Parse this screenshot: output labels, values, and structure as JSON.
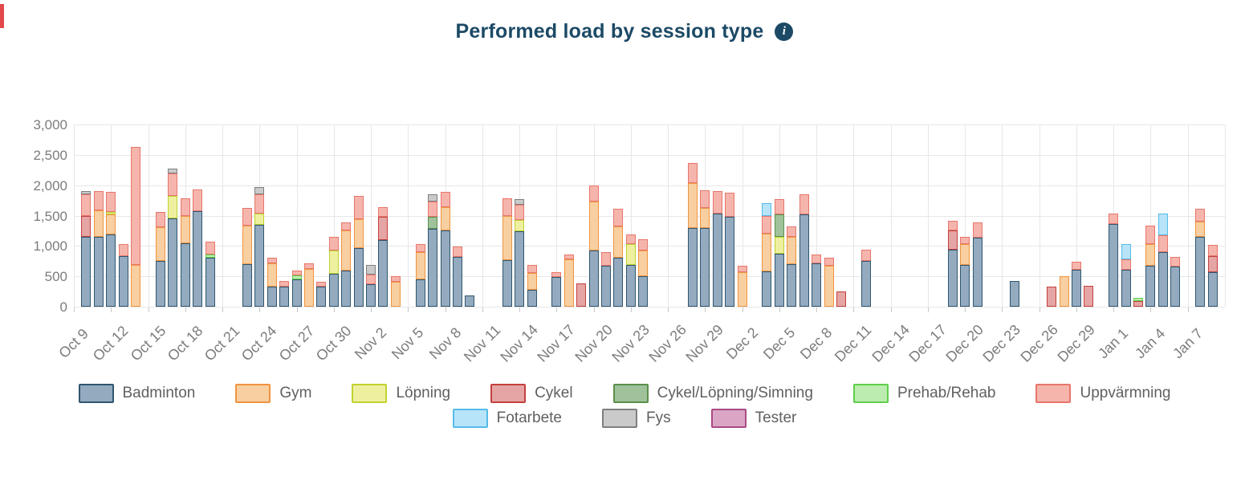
{
  "header": {
    "title": "Performed load by session type"
  },
  "chart_data": {
    "type": "bar",
    "stacked": true,
    "title": "Performed load by session type",
    "xlabel": "",
    "ylabel": "",
    "ylim": [
      0,
      3000
    ],
    "grid": true,
    "legend_position": "bottom",
    "yticks": [
      {
        "value": 0,
        "label": "0"
      },
      {
        "value": 500,
        "label": "500"
      },
      {
        "value": 1000,
        "label": "1,000"
      },
      {
        "value": 1500,
        "label": "1,500"
      },
      {
        "value": 2000,
        "label": "2,000"
      },
      {
        "value": 2500,
        "label": "2,500"
      },
      {
        "value": 3000,
        "label": "3,000"
      }
    ],
    "days_total": 93,
    "x_tick_day_step": 3,
    "x_tick_labels": [
      "Oct 9",
      "Oct 12",
      "Oct 15",
      "Oct 18",
      "Oct 21",
      "Oct 24",
      "Oct 27",
      "Oct 30",
      "Nov 2",
      "Nov 5",
      "Nov 8",
      "Nov 11",
      "Nov 14",
      "Nov 17",
      "Nov 20",
      "Nov 23",
      "Nov 26",
      "Nov 29",
      "Dec 2",
      "Dec 5",
      "Dec 8",
      "Dec 11",
      "Dec 14",
      "Dec 17",
      "Dec 20",
      "Dec 23",
      "Dec 26",
      "Dec 29",
      "Jan 1",
      "Jan 4",
      "Jan 7"
    ],
    "series": [
      {
        "key": "badminton",
        "name": "Badminton",
        "fill": "#93aabf",
        "border": "#30566f"
      },
      {
        "key": "gym",
        "name": "Gym",
        "fill": "#f8cfa0",
        "border": "#f09440"
      },
      {
        "key": "lopning",
        "name": "Löpning",
        "fill": "#eef0a0",
        "border": "#bfd22f"
      },
      {
        "key": "cykel",
        "name": "Cykel",
        "fill": "#e4a5a4",
        "border": "#c4403e"
      },
      {
        "key": "cls",
        "name": "Cykel/Löpning/Simning",
        "fill": "#9fc29a",
        "border": "#5a8f4c"
      },
      {
        "key": "prehab",
        "name": "Prehab/Rehab",
        "fill": "#bcecb0",
        "border": "#5ecf49"
      },
      {
        "key": "uppvarmning",
        "name": "Uppvärmning",
        "fill": "#f5b5ac",
        "border": "#e7766c"
      },
      {
        "key": "fotarbete",
        "name": "Fotarbete",
        "fill": "#b7e4f8",
        "border": "#55bbea"
      },
      {
        "key": "fys",
        "name": "Fys",
        "fill": "#cacaca",
        "border": "#7f7f7f"
      },
      {
        "key": "tester",
        "name": "Tester",
        "fill": "#dba6c5",
        "border": "#a94b85"
      }
    ],
    "legend_rows": [
      [
        "badminton",
        "gym",
        "lopning",
        "cykel",
        "cls",
        "prehab",
        "uppvarmning"
      ],
      [
        "fotarbete",
        "fys",
        "tester"
      ]
    ],
    "days": [
      {
        "i": 1,
        "label": "Oct 10",
        "v": {
          "badminton": 1150,
          "cykel": 340,
          "uppvarmning": 355,
          "fys": 65
        }
      },
      {
        "i": 2,
        "label": "Oct 11",
        "v": {
          "badminton": 1150,
          "gym": 435,
          "uppvarmning": 315
        }
      },
      {
        "i": 3,
        "label": "Oct 12",
        "v": {
          "badminton": 1190,
          "gym": 330,
          "lopning": 45,
          "uppvarmning": 320
        }
      },
      {
        "i": 4,
        "label": "Oct 13",
        "v": {
          "badminton": 830,
          "uppvarmning": 200
        }
      },
      {
        "i": 5,
        "label": "Oct 14",
        "v": {
          "gym": 690,
          "uppvarmning": 1940
        }
      },
      {
        "i": 7,
        "label": "Oct 16",
        "v": {
          "badminton": 750,
          "gym": 560,
          "uppvarmning": 245
        }
      },
      {
        "i": 8,
        "label": "Oct 17",
        "v": {
          "badminton": 1460,
          "lopning": 365,
          "uppvarmning": 365,
          "fys": 90
        }
      },
      {
        "i": 9,
        "label": "Oct 18",
        "v": {
          "badminton": 1050,
          "gym": 440,
          "uppvarmning": 300
        }
      },
      {
        "i": 10,
        "label": "Oct 19",
        "v": {
          "badminton": 1575,
          "uppvarmning": 360
        }
      },
      {
        "i": 11,
        "label": "Oct 20",
        "v": {
          "badminton": 810,
          "prehab": 55,
          "uppvarmning": 200
        }
      },
      {
        "i": 14,
        "label": "Oct 23",
        "v": {
          "badminton": 700,
          "gym": 630,
          "uppvarmning": 300
        }
      },
      {
        "i": 15,
        "label": "Oct 24",
        "v": {
          "badminton": 1345,
          "lopning": 190,
          "uppvarmning": 320,
          "fys": 110
        }
      },
      {
        "i": 16,
        "label": "Oct 25",
        "v": {
          "badminton": 325,
          "gym": 395,
          "uppvarmning": 80
        }
      },
      {
        "i": 17,
        "label": "Oct 26",
        "v": {
          "badminton": 335,
          "uppvarmning": 90
        }
      },
      {
        "i": 18,
        "label": "Oct 27",
        "v": {
          "badminton": 455,
          "prehab": 65,
          "uppvarmning": 80
        }
      },
      {
        "i": 19,
        "label": "Oct 28",
        "v": {
          "gym": 620,
          "uppvarmning": 100
        }
      },
      {
        "i": 20,
        "label": "Oct 29",
        "v": {
          "badminton": 325,
          "uppvarmning": 85
        }
      },
      {
        "i": 21,
        "label": "Oct 30",
        "v": {
          "badminton": 545,
          "lopning": 375,
          "uppvarmning": 225
        }
      },
      {
        "i": 22,
        "label": "Oct 31",
        "v": {
          "badminton": 600,
          "gym": 660,
          "uppvarmning": 130
        }
      },
      {
        "i": 23,
        "label": "Nov 1",
        "v": {
          "badminton": 965,
          "gym": 480,
          "uppvarmning": 385
        }
      },
      {
        "i": 24,
        "label": "Nov 2",
        "v": {
          "badminton": 365,
          "uppvarmning": 170,
          "fys": 155
        }
      },
      {
        "i": 25,
        "label": "Nov 3",
        "v": {
          "badminton": 1100,
          "cykel": 380,
          "uppvarmning": 165
        }
      },
      {
        "i": 26,
        "label": "Nov 4",
        "v": {
          "gym": 415,
          "uppvarmning": 85
        }
      },
      {
        "i": 28,
        "label": "Nov 6",
        "v": {
          "badminton": 445,
          "gym": 460,
          "uppvarmning": 125
        }
      },
      {
        "i": 29,
        "label": "Nov 7",
        "v": {
          "badminton": 1280,
          "cls": 195,
          "uppvarmning": 260,
          "fys": 110
        }
      },
      {
        "i": 30,
        "label": "Nov 8",
        "v": {
          "badminton": 1255,
          "gym": 390,
          "uppvarmning": 245
        }
      },
      {
        "i": 31,
        "label": "Nov 9",
        "v": {
          "badminton": 820,
          "uppvarmning": 165
        }
      },
      {
        "i": 32,
        "label": "Nov 10",
        "v": {
          "badminton": 180
        }
      },
      {
        "i": 35,
        "label": "Nov 13",
        "v": {
          "badminton": 765,
          "gym": 725,
          "uppvarmning": 300
        }
      },
      {
        "i": 36,
        "label": "Nov 14",
        "v": {
          "badminton": 1245,
          "lopning": 185,
          "uppvarmning": 245,
          "fys": 100
        }
      },
      {
        "i": 37,
        "label": "Nov 15",
        "v": {
          "badminton": 275,
          "gym": 280,
          "uppvarmning": 135
        }
      },
      {
        "i": 39,
        "label": "Nov 17",
        "v": {
          "badminton": 490,
          "uppvarmning": 80
        }
      },
      {
        "i": 40,
        "label": "Nov 18",
        "v": {
          "gym": 780,
          "uppvarmning": 75
        }
      },
      {
        "i": 41,
        "label": "Nov 19",
        "v": {
          "cykel": 390
        }
      },
      {
        "i": 42,
        "label": "Nov 20",
        "v": {
          "badminton": 920,
          "gym": 815,
          "uppvarmning": 255
        }
      },
      {
        "i": 43,
        "label": "Nov 21",
        "v": {
          "badminton": 675,
          "uppvarmning": 225
        }
      },
      {
        "i": 44,
        "label": "Nov 22",
        "v": {
          "badminton": 800,
          "gym": 525,
          "uppvarmning": 285
        }
      },
      {
        "i": 45,
        "label": "Nov 23",
        "v": {
          "badminton": 690,
          "lopning": 335,
          "uppvarmning": 170
        }
      },
      {
        "i": 46,
        "label": "Nov 24",
        "v": {
          "badminton": 500,
          "gym": 420,
          "uppvarmning": 190
        }
      },
      {
        "i": 50,
        "label": "Nov 28",
        "v": {
          "badminton": 1290,
          "gym": 745,
          "uppvarmning": 330
        }
      },
      {
        "i": 51,
        "label": "Nov 29",
        "v": {
          "badminton": 1290,
          "gym": 335,
          "uppvarmning": 290
        }
      },
      {
        "i": 52,
        "label": "Nov 30",
        "v": {
          "badminton": 1535,
          "uppvarmning": 365
        }
      },
      {
        "i": 53,
        "label": "Dec 1",
        "v": {
          "badminton": 1475,
          "uppvarmning": 405
        }
      },
      {
        "i": 54,
        "label": "Dec 2",
        "v": {
          "gym": 565,
          "uppvarmning": 110
        }
      },
      {
        "i": 56,
        "label": "Dec 4",
        "v": {
          "badminton": 585,
          "gym": 620,
          "uppvarmning": 290,
          "fotarbete": 205
        }
      },
      {
        "i": 57,
        "label": "Dec 5",
        "v": {
          "badminton": 875,
          "lopning": 280,
          "cls": 365,
          "uppvarmning": 250
        }
      },
      {
        "i": 58,
        "label": "Dec 6",
        "v": {
          "badminton": 700,
          "gym": 455,
          "uppvarmning": 170
        }
      },
      {
        "i": 59,
        "label": "Dec 7",
        "v": {
          "badminton": 1520,
          "uppvarmning": 335
        }
      },
      {
        "i": 60,
        "label": "Dec 8",
        "v": {
          "badminton": 710,
          "uppvarmning": 145
        }
      },
      {
        "i": 61,
        "label": "Dec 9",
        "v": {
          "gym": 680,
          "uppvarmning": 130
        }
      },
      {
        "i": 62,
        "label": "Dec 10",
        "v": {
          "cykel": 255
        }
      },
      {
        "i": 64,
        "label": "Dec 12",
        "v": {
          "badminton": 755,
          "uppvarmning": 180
        }
      },
      {
        "i": 71,
        "label": "Dec 19",
        "v": {
          "badminton": 935,
          "cykel": 325,
          "uppvarmning": 150
        }
      },
      {
        "i": 72,
        "label": "Dec 20",
        "v": {
          "badminton": 690,
          "gym": 335,
          "uppvarmning": 125
        }
      },
      {
        "i": 73,
        "label": "Dec 21",
        "v": {
          "badminton": 1135,
          "uppvarmning": 255
        }
      },
      {
        "i": 76,
        "label": "Dec 24",
        "v": {
          "badminton": 420
        }
      },
      {
        "i": 79,
        "label": "Dec 27",
        "v": {
          "cykel": 335
        }
      },
      {
        "i": 80,
        "label": "Dec 28",
        "v": {
          "gym": 500
        }
      },
      {
        "i": 81,
        "label": "Dec 29",
        "v": {
          "badminton": 610,
          "uppvarmning": 125
        }
      },
      {
        "i": 82,
        "label": "Dec 30",
        "v": {
          "cykel": 340
        }
      },
      {
        "i": 84,
        "label": "Jan 1",
        "v": {
          "badminton": 1355,
          "uppvarmning": 180
        }
      },
      {
        "i": 85,
        "label": "Jan 2",
        "v": {
          "badminton": 610,
          "uppvarmning": 170,
          "fotarbete": 245
        }
      },
      {
        "i": 86,
        "label": "Jan 3",
        "v": {
          "cykel": 90,
          "prehab": 55
        }
      },
      {
        "i": 87,
        "label": "Jan 4",
        "v": {
          "badminton": 675,
          "gym": 355,
          "uppvarmning": 305
        }
      },
      {
        "i": 88,
        "label": "Jan 5",
        "v": {
          "badminton": 900,
          "uppvarmning": 280,
          "fotarbete": 355
        }
      },
      {
        "i": 89,
        "label": "Jan 6",
        "v": {
          "badminton": 655,
          "uppvarmning": 170
        }
      },
      {
        "i": 91,
        "label": "Jan 8",
        "v": {
          "badminton": 1155,
          "gym": 245,
          "uppvarmning": 215
        }
      },
      {
        "i": 92,
        "label": "Jan 9",
        "v": {
          "badminton": 565,
          "cykel": 270,
          "uppvarmning": 185
        }
      }
    ]
  }
}
